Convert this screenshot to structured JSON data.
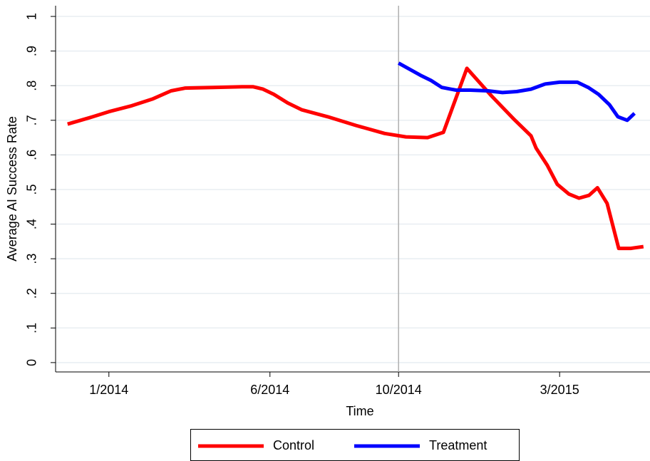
{
  "chart_data": {
    "type": "line",
    "x_label": "Time",
    "y_label": "Average AI Success Rate",
    "xlim": [
      2013.862,
      2015.401
    ],
    "ylim": [
      -0.027,
      1.031
    ],
    "xticks": [
      {
        "value": 2014.0,
        "label": "1/2014"
      },
      {
        "value": 2014.417,
        "label": "6/2014"
      },
      {
        "value": 2014.75,
        "label": "10/2014"
      },
      {
        "value": 2015.167,
        "label": "3/2015"
      }
    ],
    "yticks": [
      0,
      {
        "value": 0.1,
        "label": ".1"
      },
      {
        "value": 0.2,
        "label": ".2"
      },
      {
        "value": 0.3,
        "label": ".3"
      },
      {
        "value": 0.4,
        "label": ".4"
      },
      {
        "value": 0.5,
        "label": ".5"
      },
      {
        "value": 0.6,
        "label": ".6"
      },
      {
        "value": 0.7,
        "label": ".7"
      },
      {
        "value": 0.8,
        "label": ".8"
      },
      {
        "value": 0.9,
        "label": ".9"
      },
      1
    ],
    "grid": true,
    "xline": 2014.75,
    "legend": "bottom",
    "series": [
      {
        "name": "Control",
        "color": "#ff0000",
        "x": [
          2013.893,
          2013.958,
          2014.0,
          2014.059,
          2014.114,
          2014.161,
          2014.198,
          2014.271,
          2014.345,
          2014.373,
          2014.399,
          2014.427,
          2014.463,
          2014.5,
          2014.567,
          2014.64,
          2014.714,
          2014.769,
          2014.825,
          2014.866,
          2014.927,
          2014.991,
          2015.047,
          2015.093,
          2015.106,
          2015.135,
          2015.161,
          2015.191,
          2015.217,
          2015.243,
          2015.265,
          2015.29,
          2015.32,
          2015.351,
          2015.384
        ],
        "values": [
          0.689,
          0.71,
          0.725,
          0.742,
          0.762,
          0.785,
          0.793,
          0.795,
          0.797,
          0.797,
          0.79,
          0.775,
          0.75,
          0.73,
          0.71,
          0.685,
          0.662,
          0.652,
          0.65,
          0.665,
          0.85,
          0.77,
          0.705,
          0.655,
          0.62,
          0.57,
          0.515,
          0.487,
          0.475,
          0.483,
          0.505,
          0.46,
          0.33,
          0.33,
          0.335
        ]
      },
      {
        "name": "Treatment",
        "color": "#0000ff",
        "x": [
          2014.75,
          2014.807,
          2014.834,
          2014.862,
          2014.899,
          2014.936,
          2014.982,
          2015.019,
          2015.056,
          2015.093,
          2015.13,
          2015.167,
          2015.213,
          2015.241,
          2015.268,
          2015.296,
          2015.318,
          2015.342,
          2015.361
        ],
        "values": [
          0.865,
          0.83,
          0.815,
          0.795,
          0.787,
          0.787,
          0.785,
          0.78,
          0.783,
          0.79,
          0.805,
          0.81,
          0.81,
          0.795,
          0.775,
          0.745,
          0.71,
          0.7,
          0.72
        ]
      }
    ]
  }
}
